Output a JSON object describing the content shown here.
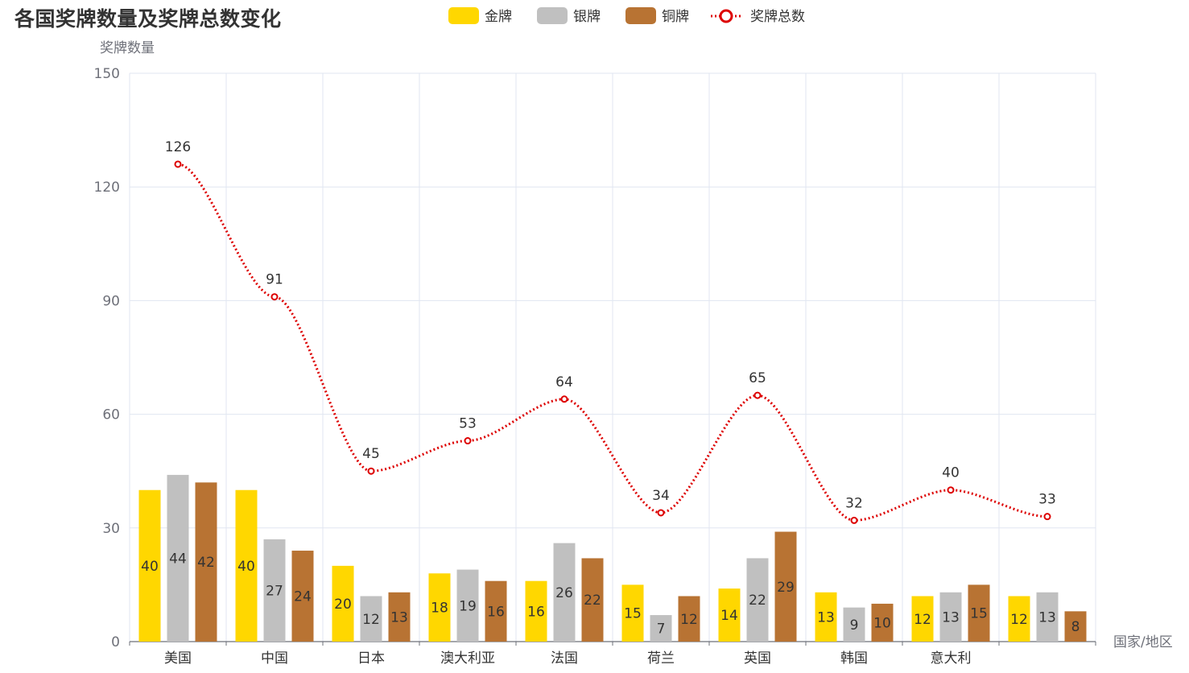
{
  "title": "各国奖牌数量及奖牌总数变化",
  "chart_data": {
    "type": "bar",
    "title": "各国奖牌数量及奖牌总数变化",
    "ylabel": "奖牌数量",
    "xlabel": "国家/地区",
    "ylim": [
      0,
      150
    ],
    "yticks": [
      0,
      30,
      60,
      90,
      120,
      150
    ],
    "grid": true,
    "legend_position": "top",
    "categories": [
      "美国",
      "中国",
      "日本",
      "澳大利亚",
      "法国",
      "荷兰",
      "英国",
      "韩国",
      "意大利",
      ""
    ],
    "series": [
      {
        "name": "金牌",
        "type": "bar",
        "color": "#ffd700",
        "values": [
          40,
          40,
          20,
          18,
          16,
          15,
          14,
          13,
          12,
          12
        ]
      },
      {
        "name": "银牌",
        "type": "bar",
        "color": "#c0c0c0",
        "values": [
          44,
          27,
          12,
          19,
          26,
          7,
          22,
          9,
          13,
          13
        ]
      },
      {
        "name": "铜牌",
        "type": "bar",
        "color": "#b87333",
        "values": [
          42,
          24,
          13,
          16,
          22,
          12,
          29,
          10,
          15,
          8
        ]
      },
      {
        "name": "奖牌总数",
        "type": "line",
        "style": "dotted-smooth",
        "color": "#dd0000",
        "values": [
          126,
          91,
          45,
          53,
          64,
          34,
          65,
          32,
          40,
          33
        ]
      }
    ]
  }
}
